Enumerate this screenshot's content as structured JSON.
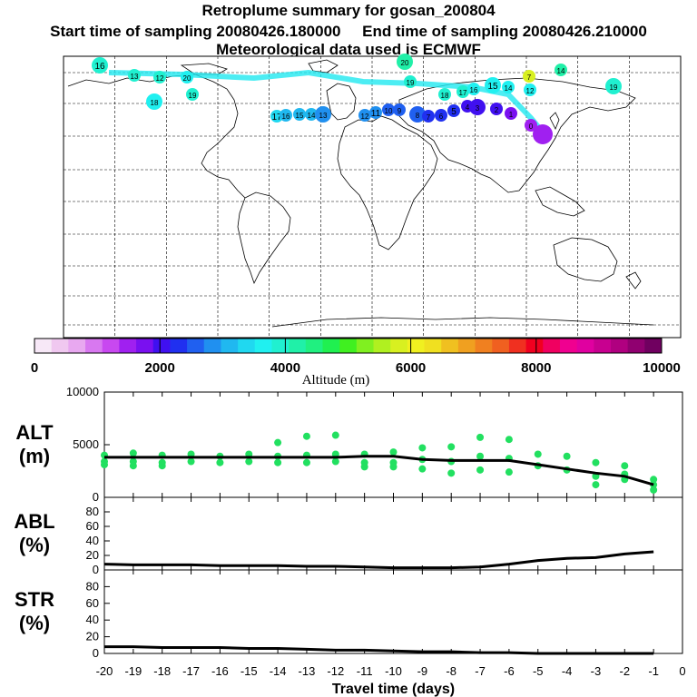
{
  "header": {
    "title": "Retroplume summary for gosan_200804",
    "line2": "Start time of sampling 20080426.180000     End time of sampling 20080426.210000",
    "line3": "Meteorological data used is ECMWF"
  },
  "map": {
    "plume_labels": [
      "16",
      "13",
      "12",
      "20",
      "19",
      "18",
      "17",
      "16",
      "15",
      "14",
      "13",
      "12",
      "11",
      "10",
      "9",
      "8",
      "7",
      "6",
      "5",
      "4",
      "3",
      "2",
      "1",
      "0",
      "7",
      "14"
    ]
  },
  "colorbar": {
    "ticks": [
      "0",
      "2000",
      "4000",
      "6000",
      "8000",
      "10000"
    ],
    "label": "Altitude (m)",
    "colors": [
      "#f7e8f7",
      "#f0c8f0",
      "#e8a8f0",
      "#d878f0",
      "#c848f0",
      "#a020f0",
      "#7a10f0",
      "#4010f0",
      "#2030f0",
      "#2060f0",
      "#2090f0",
      "#20b8f0",
      "#20d8f0",
      "#20f0f0",
      "#20f0d0",
      "#20f0a8",
      "#20f080",
      "#20f050",
      "#40f020",
      "#80f020",
      "#b0f020",
      "#d8f020",
      "#f0f020",
      "#f0e020",
      "#f0c020",
      "#f0a020",
      "#f08020",
      "#f06020",
      "#f03020",
      "#f00020",
      "#f00060",
      "#f00090",
      "#e000a0",
      "#c80090",
      "#b00080",
      "#900070",
      "#700060"
    ]
  },
  "chart_data": [
    {
      "type": "scatter",
      "name": "ALT",
      "ylabel": "ALT\n(m)",
      "ylim": [
        0,
        10000
      ],
      "y_ticks": [
        "10000",
        "5000",
        "0"
      ],
      "x": [
        -20,
        -19,
        -18,
        -17,
        -16,
        -15,
        -14,
        -13,
        -12,
        -11,
        -10,
        -9,
        -8,
        -7,
        -6,
        -5,
        -4,
        -3,
        -2,
        -1
      ],
      "median_line": [
        3800,
        3800,
        3800,
        3800,
        3800,
        3800,
        3800,
        3800,
        3800,
        3900,
        3900,
        3600,
        3500,
        3500,
        3500,
        3100,
        2700,
        2300,
        2000,
        1200
      ],
      "scatter_points": [
        [
          -20,
          3400
        ],
        [
          -20,
          4000
        ],
        [
          -20,
          3100
        ],
        [
          -19,
          3400
        ],
        [
          -19,
          4200
        ],
        [
          -19,
          3000
        ],
        [
          -18,
          3300
        ],
        [
          -18,
          4000
        ],
        [
          -18,
          3000
        ],
        [
          -17,
          3400
        ],
        [
          -17,
          4100
        ],
        [
          -16,
          3300
        ],
        [
          -16,
          3900
        ],
        [
          -15,
          3400
        ],
        [
          -15,
          4100
        ],
        [
          -14,
          3300
        ],
        [
          -14,
          3900
        ],
        [
          -14,
          5200
        ],
        [
          -13,
          3300
        ],
        [
          -13,
          4000
        ],
        [
          -13,
          5800
        ],
        [
          -12,
          3400
        ],
        [
          -12,
          4100
        ],
        [
          -12,
          5900
        ],
        [
          -11,
          3300
        ],
        [
          -11,
          4100
        ],
        [
          -11,
          2900
        ],
        [
          -10,
          3300
        ],
        [
          -10,
          4300
        ],
        [
          -10,
          2900
        ],
        [
          -9,
          2700
        ],
        [
          -9,
          3600
        ],
        [
          -9,
          4700
        ],
        [
          -8,
          2300
        ],
        [
          -8,
          3400
        ],
        [
          -8,
          4800
        ],
        [
          -7,
          2600
        ],
        [
          -7,
          3900
        ],
        [
          -7,
          5700
        ],
        [
          -6,
          2400
        ],
        [
          -6,
          3700
        ],
        [
          -6,
          5500
        ],
        [
          -5,
          3000
        ],
        [
          -5,
          4100
        ],
        [
          -4,
          2600
        ],
        [
          -4,
          3900
        ],
        [
          -3,
          1200
        ],
        [
          -3,
          2000
        ],
        [
          -3,
          3300
        ],
        [
          -2,
          1700
        ],
        [
          -2,
          2200
        ],
        [
          -2,
          3000
        ],
        [
          -1,
          700
        ],
        [
          -1,
          1200
        ],
        [
          -1,
          1700
        ]
      ]
    },
    {
      "type": "line",
      "name": "ABL",
      "ylabel": "ABL\n(%)",
      "ylim": [
        0,
        100
      ],
      "y_ticks": [
        "80",
        "60",
        "40",
        "20",
        "0"
      ],
      "x": [
        -20,
        -19,
        -18,
        -17,
        -16,
        -15,
        -14,
        -13,
        -12,
        -11,
        -10,
        -9,
        -8,
        -7,
        -6,
        -5,
        -4,
        -3,
        -2,
        -1
      ],
      "values": [
        8,
        7,
        7,
        7,
        6,
        6,
        6,
        5,
        5,
        4,
        3,
        3,
        3,
        4,
        8,
        13,
        16,
        17,
        22,
        25
      ]
    },
    {
      "type": "line",
      "name": "STR",
      "ylabel": "STR\n(%)",
      "ylim": [
        0,
        100
      ],
      "y_ticks": [
        "80",
        "60",
        "40",
        "20",
        "0"
      ],
      "x": [
        -20,
        -19,
        -18,
        -17,
        -16,
        -15,
        -14,
        -13,
        -12,
        -11,
        -10,
        -9,
        -8,
        -7,
        -6,
        -5,
        -4,
        -3,
        -2,
        -1
      ],
      "values": [
        8,
        8,
        7,
        7,
        7,
        6,
        6,
        5,
        4,
        4,
        3,
        2,
        2,
        1,
        1,
        0,
        0,
        0,
        0,
        0
      ],
      "x_ticks": [
        "-20",
        "-19",
        "-18",
        "-17",
        "-16",
        "-15",
        "-14",
        "-13",
        "-12",
        "-11",
        "-10",
        "-9",
        "-8",
        "-7",
        "-6",
        "-5",
        "-4",
        "-3",
        "-2",
        "-1",
        "0"
      ],
      "xlabel": "Travel time (days)"
    }
  ]
}
